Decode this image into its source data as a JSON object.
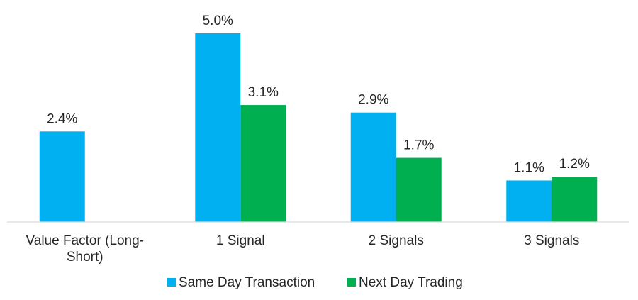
{
  "chart_data": {
    "type": "bar",
    "title": "",
    "xlabel": "",
    "ylabel": "",
    "ylim": [
      0,
      5.5
    ],
    "grid": false,
    "legend_position": "bottom",
    "categories": [
      [
        "Value Factor (Long-",
        "Short)"
      ],
      [
        "1 Signal"
      ],
      [
        "2 Signals"
      ],
      [
        "3 Signals"
      ]
    ],
    "series": [
      {
        "name": "Same Day Transaction",
        "color": "#00B0F0",
        "values": [
          2.4,
          5.0,
          2.9,
          1.1
        ],
        "labels": [
          "2.4%",
          "5.0%",
          "2.9%",
          "1.1%"
        ]
      },
      {
        "name": "Next Day Trading",
        "color": "#00B050",
        "values": [
          null,
          3.1,
          1.7,
          1.2
        ],
        "labels": [
          "",
          "3.1%",
          "1.7%",
          "1.2%"
        ]
      }
    ]
  }
}
